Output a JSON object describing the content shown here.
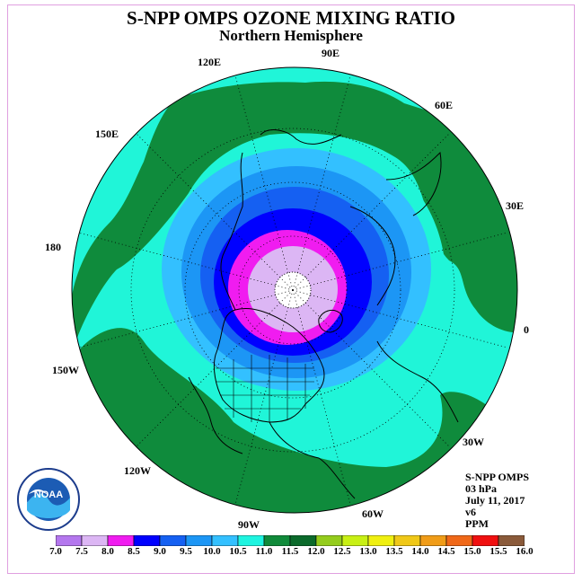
{
  "title": "S-NPP OMPS OZONE MIXING RATIO",
  "subtitle": "Northern Hemisphere",
  "longitude_labels": [
    "90E",
    "60E",
    "30E",
    "0",
    "30W",
    "60W",
    "90W",
    "120W",
    "150W",
    "180",
    "150E",
    "120E"
  ],
  "info": {
    "instrument": "S-NPP OMPS",
    "level": "03 hPa",
    "date": "July 11, 2017",
    "version": "v6",
    "units": "PPM"
  },
  "logo": {
    "text": "NOAA"
  },
  "colorbar": {
    "ticks": [
      "7.0",
      "7.5",
      "8.0",
      "8.5",
      "9.0",
      "9.5",
      "10.0",
      "10.5",
      "11.0",
      "11.5",
      "12.0",
      "12.5",
      "13.0",
      "13.5",
      "14.0",
      "14.5",
      "15.0",
      "15.5",
      "16.0"
    ],
    "colors": [
      "#b477ee",
      "#dcb6f4",
      "#f01cf0",
      "#0000ff",
      "#1560f2",
      "#1c96f5",
      "#33c0ff",
      "#1ef4e0",
      "#108a3a",
      "#0b6a2b",
      "#94cc1c",
      "#c8f014",
      "#f0f010",
      "#f0c818",
      "#f09c18",
      "#f06818",
      "#f01010",
      "#8a5a3a"
    ]
  },
  "map_colors": {
    "cyan": "#20f5d8",
    "green": "#0f8b3c",
    "lt_blue": "#33c0ff",
    "mid_blue": "#1c96f5",
    "blue2": "#1560f2",
    "blue": "#0000ff",
    "magenta": "#f01cf0",
    "lavender": "#dcb6f4",
    "white": "#ffffff"
  }
}
